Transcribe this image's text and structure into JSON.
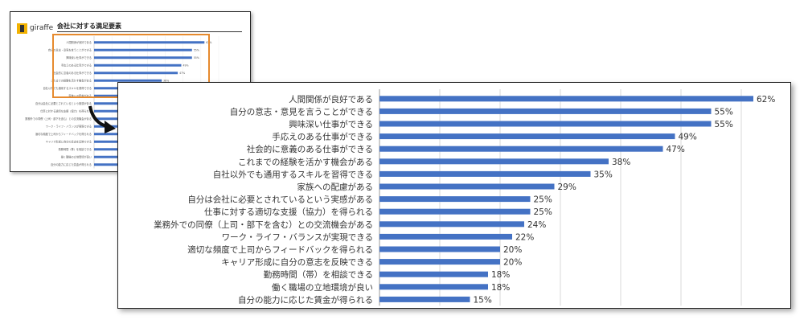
{
  "thumbnail": {
    "brand": "giraffe",
    "title": "会社に対する満足要素"
  },
  "colors": {
    "bar": "#4472c4",
    "highlight": "#e68a2e",
    "grid": "#d9d9d9"
  },
  "chart_data": {
    "type": "bar",
    "orientation": "horizontal",
    "title": "",
    "xlabel": "",
    "ylabel": "",
    "xlim": [
      0,
      70
    ],
    "grid": true,
    "categories": [
      "人間関係が良好である",
      "自分の意志・意見を言うことができる",
      "興味深い仕事ができる",
      "手応えのある仕事ができる",
      "社会的に意義のある仕事ができる",
      "これまでの経験を活かす機会がある",
      "自社以外でも通用するスキルを習得できる",
      "家族への配慮がある",
      "自分は会社に必要とされているという実感がある",
      "仕事に対する適切な支援（協力）を得られる",
      "業務外での同僚（上司・部下を含む）との交流機会がある",
      "ワーク・ライフ・バランスが実現できる",
      "適切な頻度で上司からフィードバックを得られる",
      "キャリア形成に自分の意志を反映できる",
      "勤務時間（帯）を相談できる",
      "働く職場の立地環境が良い",
      "自分の能力に応じた賃金が得られる"
    ],
    "values": [
      62,
      55,
      55,
      49,
      47,
      38,
      35,
      29,
      25,
      25,
      24,
      22,
      20,
      20,
      18,
      18,
      15
    ],
    "value_labels": [
      "62%",
      "55%",
      "55%",
      "49%",
      "47%",
      "38%",
      "35%",
      "29%",
      "25%",
      "25%",
      "24%",
      "22%",
      "20%",
      "20%",
      "18%",
      "18%",
      "15%"
    ]
  }
}
